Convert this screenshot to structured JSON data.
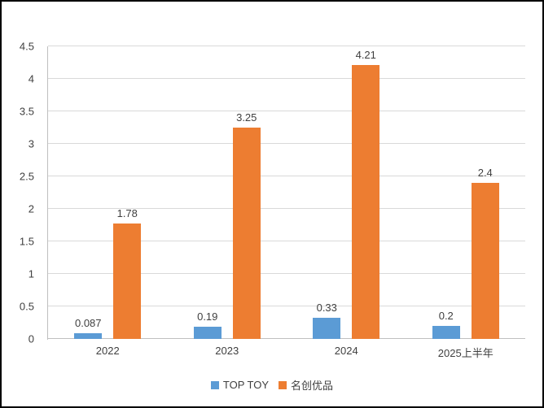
{
  "chart_data": {
    "type": "bar",
    "title": "",
    "xlabel": "",
    "ylabel": "",
    "categories": [
      "2022",
      "2023",
      "2024",
      "2025上半年"
    ],
    "series": [
      {
        "name": "TOP TOY",
        "color": "#5B9BD5",
        "values": [
          0.087,
          0.19,
          0.33,
          0.2
        ],
        "labels": [
          "0.087",
          "0.19",
          "0.33",
          "0.2"
        ]
      },
      {
        "name": "名创优品",
        "color": "#ED7D31",
        "values": [
          1.78,
          3.25,
          4.21,
          2.4
        ],
        "labels": [
          "1.78",
          "3.25",
          "4.21",
          "2.4"
        ]
      }
    ],
    "ylim": [
      0,
      4.5
    ],
    "ytick_step": 0.5,
    "yticks": [
      "0",
      "0.5",
      "1",
      "1.5",
      "2",
      "2.5",
      "3",
      "3.5",
      "4",
      "4.5"
    ],
    "grid": true,
    "legend_position": "bottom"
  },
  "colors": {
    "gridline": "#D9D9D9",
    "axis": "#BFBFBF",
    "text": "#3F3F3F",
    "background": "#FFFFFF",
    "frame": "#000000"
  }
}
